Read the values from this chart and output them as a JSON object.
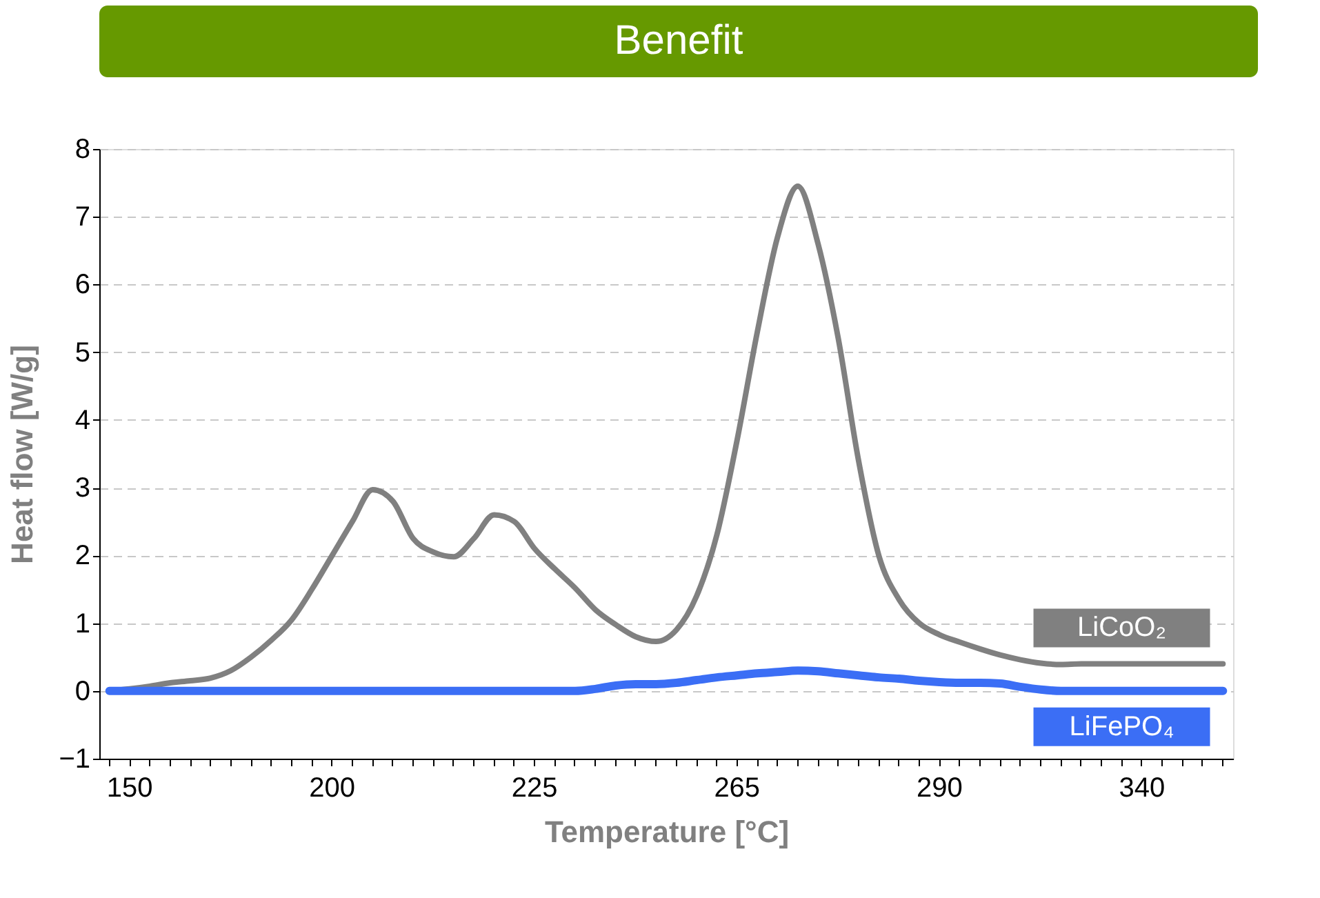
{
  "chart_data": {
    "type": "line",
    "title": "Benefit",
    "xlabel": "Temperature [°C]",
    "ylabel": "Heat flow [W/g]",
    "categories": [
      null,
      "150",
      null,
      null,
      null,
      null,
      null,
      null,
      null,
      null,
      null,
      "200",
      null,
      null,
      null,
      null,
      null,
      null,
      null,
      null,
      null,
      "225",
      null,
      null,
      null,
      null,
      null,
      null,
      null,
      null,
      null,
      "265",
      null,
      null,
      null,
      null,
      null,
      null,
      null,
      null,
      null,
      "290",
      null,
      null,
      null,
      null,
      null,
      null,
      null,
      null,
      null,
      "340",
      null,
      null,
      null,
      null
    ],
    "series": [
      {
        "name": "LiCoO₂",
        "color": "#808080",
        "values": [
          0,
          0.03,
          0.07,
          0.12,
          0.15,
          0.19,
          0.3,
          0.5,
          0.75,
          1.05,
          1.5,
          2.0,
          2.5,
          2.97,
          2.8,
          2.25,
          2.05,
          1.98,
          2.25,
          2.6,
          2.5,
          2.1,
          1.8,
          1.52,
          1.2,
          0.98,
          0.8,
          0.73,
          0.9,
          1.4,
          2.3,
          3.7,
          5.3,
          6.7,
          7.45,
          6.6,
          5.2,
          3.4,
          2.0,
          1.35,
          1.0,
          0.83,
          0.72,
          0.62,
          0.53,
          0.46,
          0.41,
          0.39,
          0.4,
          0.4,
          0.4,
          0.4,
          0.4,
          0.4,
          0.4,
          0.4
        ]
      },
      {
        "name": "LiFePO₄",
        "color": "#3b6ef5",
        "values": [
          0,
          0,
          0,
          0,
          0,
          0,
          0,
          0,
          0,
          0,
          0,
          0,
          0,
          0,
          0,
          0,
          0,
          0,
          0,
          0,
          0,
          0,
          0,
          0,
          0.03,
          0.08,
          0.1,
          0.1,
          0.12,
          0.16,
          0.2,
          0.23,
          0.26,
          0.28,
          0.3,
          0.29,
          0.26,
          0.23,
          0.2,
          0.18,
          0.15,
          0.13,
          0.12,
          0.12,
          0.11,
          0.06,
          0.02,
          0,
          0,
          0,
          0,
          0,
          0,
          0,
          0,
          0
        ]
      }
    ],
    "ylim": [
      -1,
      8
    ],
    "yticks": [
      -1,
      0,
      1,
      2,
      3,
      4,
      5,
      6,
      7,
      8
    ],
    "grid": "y",
    "line_style": "solid",
    "marker": "none"
  }
}
